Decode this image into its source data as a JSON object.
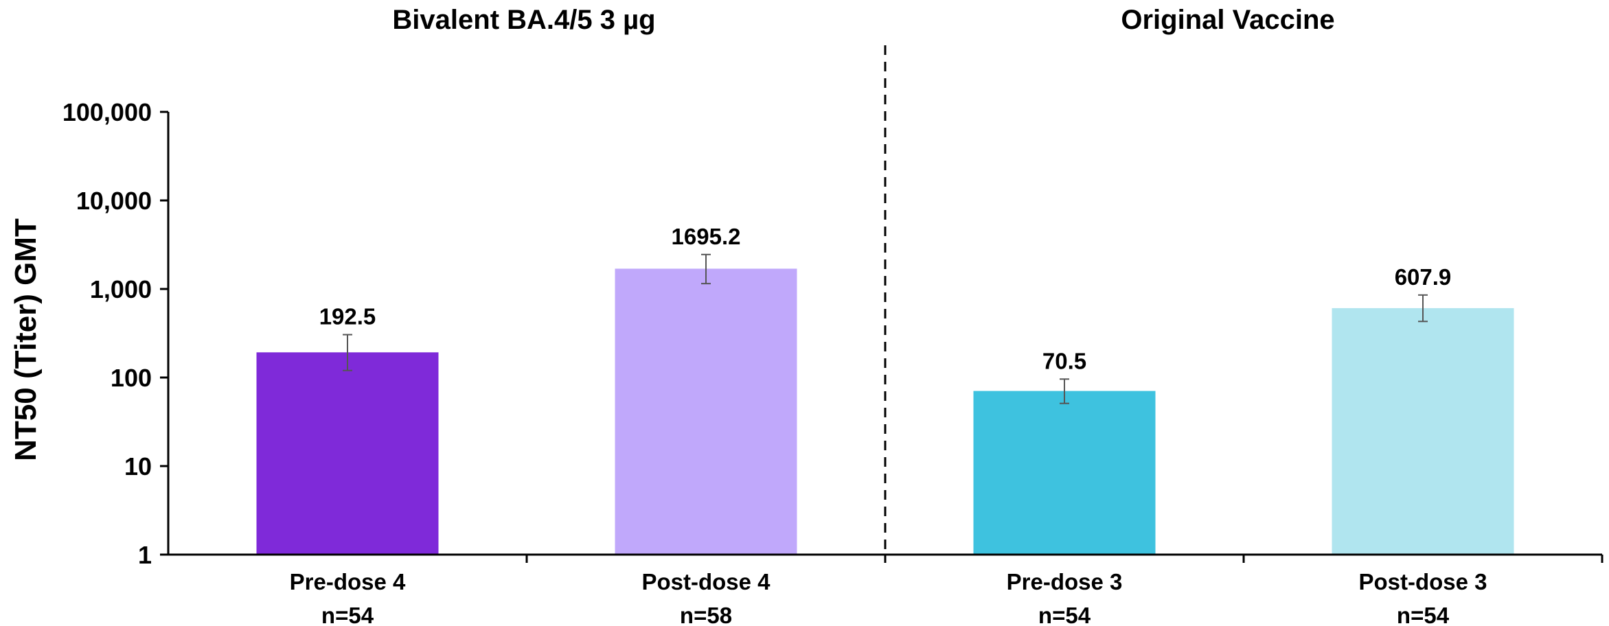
{
  "chart_data": {
    "type": "bar",
    "title": "",
    "xlabel": "",
    "ylabel": "NT50 (Titer) GMT",
    "yscale": "log",
    "ylim": [
      1,
      100000
    ],
    "ytick_values": [
      1,
      10,
      100,
      1000,
      10000,
      100000
    ],
    "ytick_labels": [
      "1",
      "10",
      "100",
      "1,000",
      "10,000",
      "100,000"
    ],
    "grid": false,
    "legend": "none",
    "groups": [
      {
        "label": "Bivalent BA.4/5 3 µg",
        "categories": [
          0,
          1
        ]
      },
      {
        "label": "Original Vaccine",
        "categories": [
          2,
          3
        ]
      }
    ],
    "group_divider": "dashed",
    "categories": [
      {
        "label": "Pre-dose 4",
        "n": "n=54"
      },
      {
        "label": "Post-dose 4",
        "n": "n=58"
      },
      {
        "label": "Pre-dose 3",
        "n": "n=54"
      },
      {
        "label": "Post-dose 3",
        "n": "n=54"
      }
    ],
    "values": [
      192.5,
      1695.2,
      70.5,
      607.9
    ],
    "value_labels": [
      "192.5",
      "1695.2",
      "70.5",
      "607.9"
    ],
    "error_bars": [
      {
        "low": 120,
        "high": 305
      },
      {
        "low": 1150,
        "high": 2450
      },
      {
        "low": 51,
        "high": 96
      },
      {
        "low": 430,
        "high": 855
      }
    ],
    "colors": [
      "#7f2ad9",
      "#c0a8fb",
      "#3ec2df",
      "#b0e5ef"
    ]
  }
}
